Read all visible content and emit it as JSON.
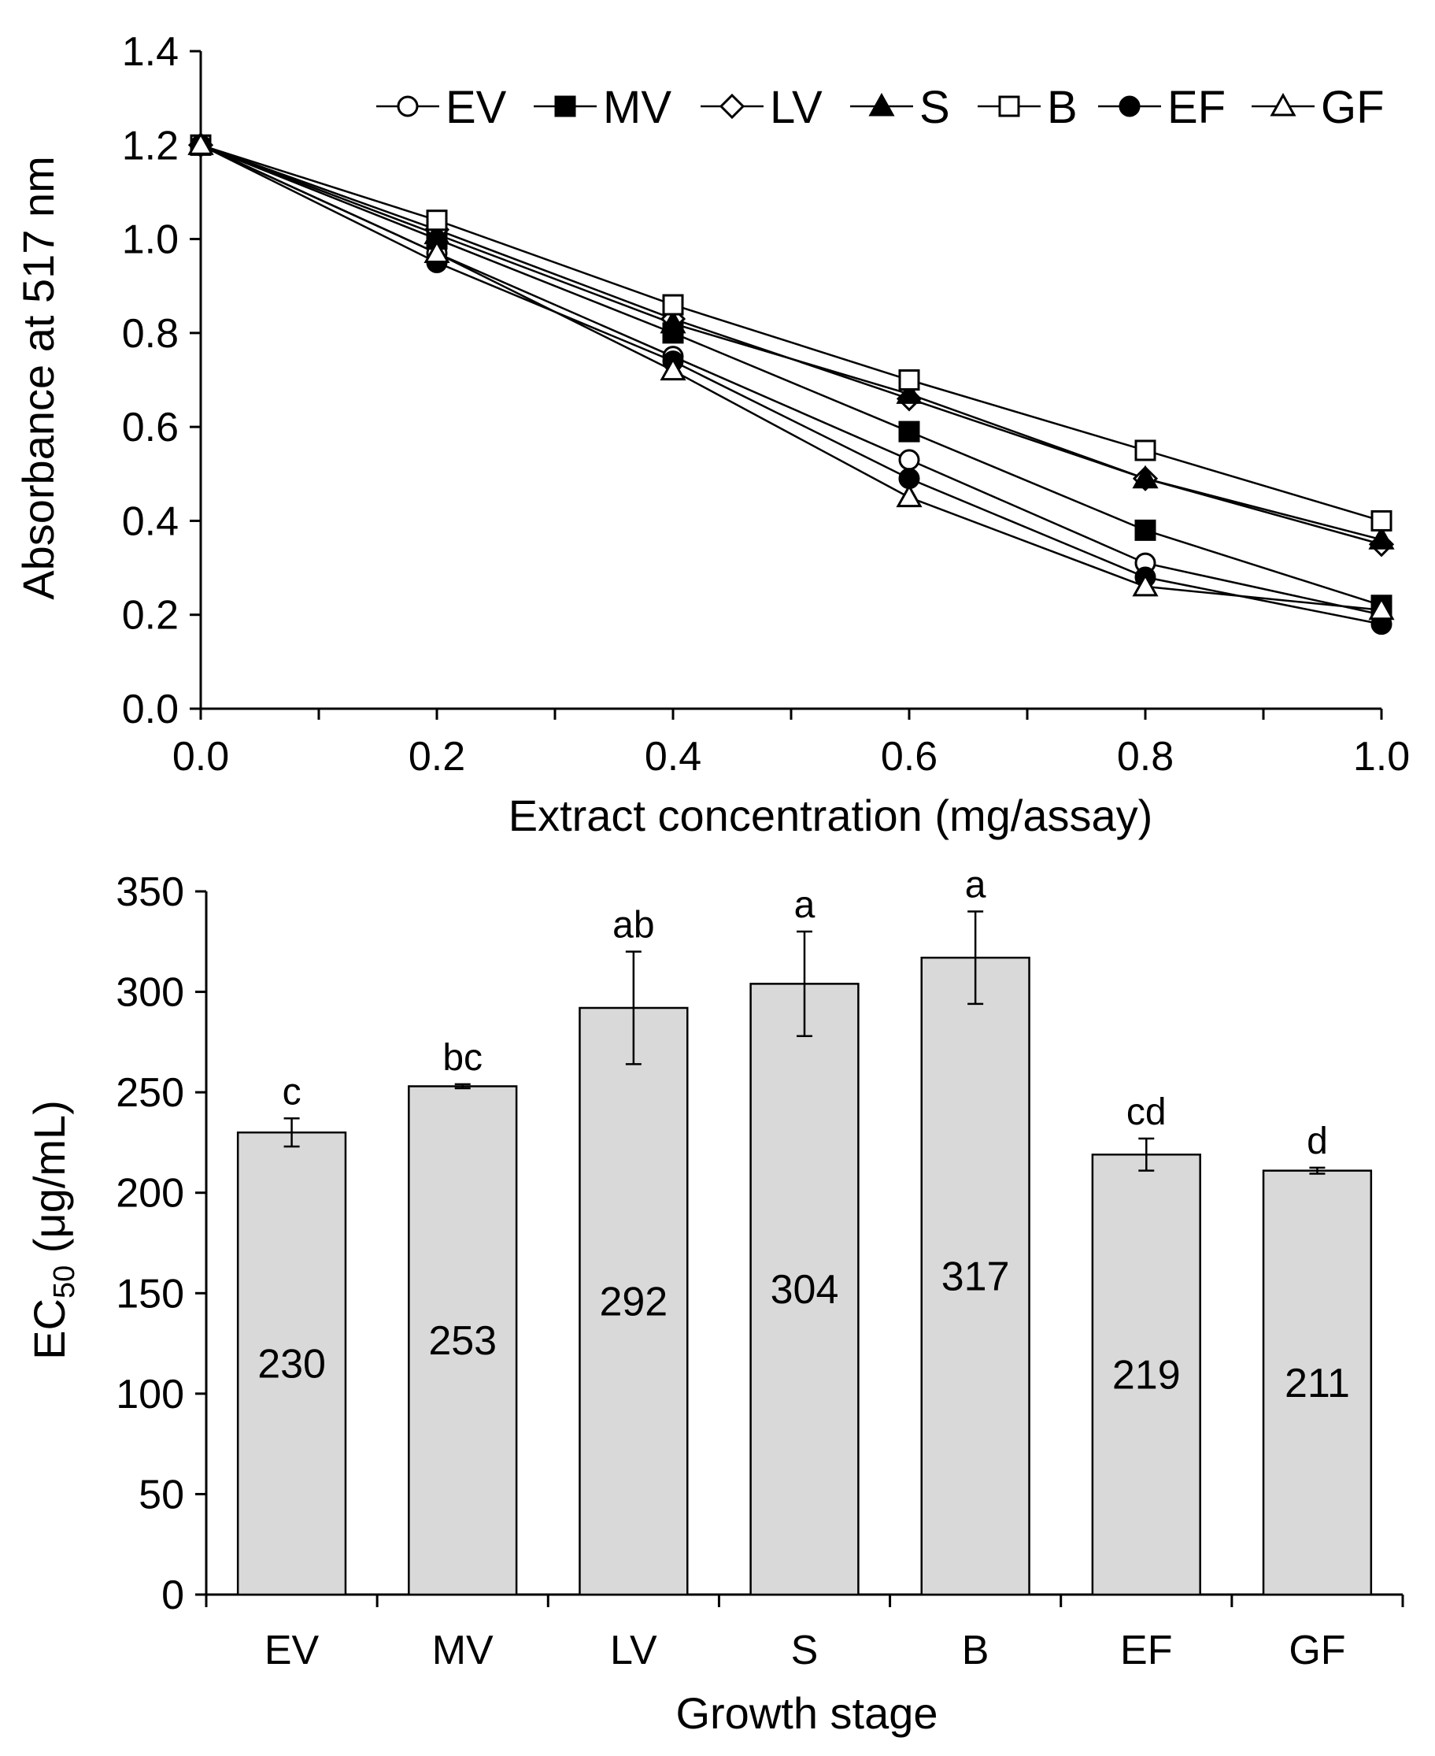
{
  "chart_data": [
    {
      "type": "line",
      "xlabel": "Extract concentration (mg/assay)",
      "ylabel": "Absorbance at 517 nm",
      "xlim": [
        0,
        1.0
      ],
      "ylim": [
        0,
        1.4
      ],
      "xticks": [
        "0.0",
        "0.2",
        "0.4",
        "0.6",
        "0.8",
        "1.0"
      ],
      "yticks": [
        "0.0",
        "0.2",
        "0.4",
        "0.6",
        "0.8",
        "1.0",
        "1.2",
        "1.4"
      ],
      "x": [
        0,
        0.2,
        0.4,
        0.6,
        0.8,
        1.0
      ],
      "legend_position": "top-right",
      "series": [
        {
          "name": "EV",
          "marker": "open-circle",
          "values": [
            1.2,
            0.97,
            0.75,
            0.53,
            0.31,
            0.2
          ]
        },
        {
          "name": "MV",
          "marker": "filled-square",
          "values": [
            1.2,
            1.0,
            0.8,
            0.59,
            0.38,
            0.22
          ]
        },
        {
          "name": "LV",
          "marker": "open-diamond",
          "values": [
            1.2,
            1.02,
            0.83,
            0.66,
            0.49,
            0.35
          ]
        },
        {
          "name": "S",
          "marker": "filled-triangle",
          "values": [
            1.2,
            1.01,
            0.82,
            0.67,
            0.49,
            0.36
          ]
        },
        {
          "name": "B",
          "marker": "open-square",
          "values": [
            1.2,
            1.04,
            0.86,
            0.7,
            0.55,
            0.4
          ]
        },
        {
          "name": "EF",
          "marker": "filled-circle",
          "values": [
            1.2,
            0.95,
            0.74,
            0.49,
            0.28,
            0.18
          ]
        },
        {
          "name": "GF",
          "marker": "open-triangle",
          "values": [
            1.2,
            0.97,
            0.72,
            0.45,
            0.26,
            0.21
          ]
        }
      ]
    },
    {
      "type": "bar",
      "xlabel": "Growth stage",
      "ylabel_main": "EC",
      "ylabel_sub": "50",
      "ylabel_unit": " (μg/mL)",
      "ylim": [
        0,
        350
      ],
      "yticks": [
        "0",
        "50",
        "100",
        "150",
        "200",
        "250",
        "300",
        "350"
      ],
      "categories": [
        "EV",
        "MV",
        "LV",
        "S",
        "B",
        "EF",
        "GF"
      ],
      "values": [
        230,
        253,
        292,
        304,
        317,
        219,
        211
      ],
      "value_labels": [
        "230",
        "253",
        "292",
        "304",
        "317",
        "219",
        "211"
      ],
      "errors": [
        7,
        1,
        28,
        26,
        23,
        8,
        1.5
      ],
      "significance": [
        "c",
        "bc",
        "ab",
        "a",
        "a",
        "cd",
        "d"
      ],
      "bar_color": "#d9d9d9"
    }
  ]
}
